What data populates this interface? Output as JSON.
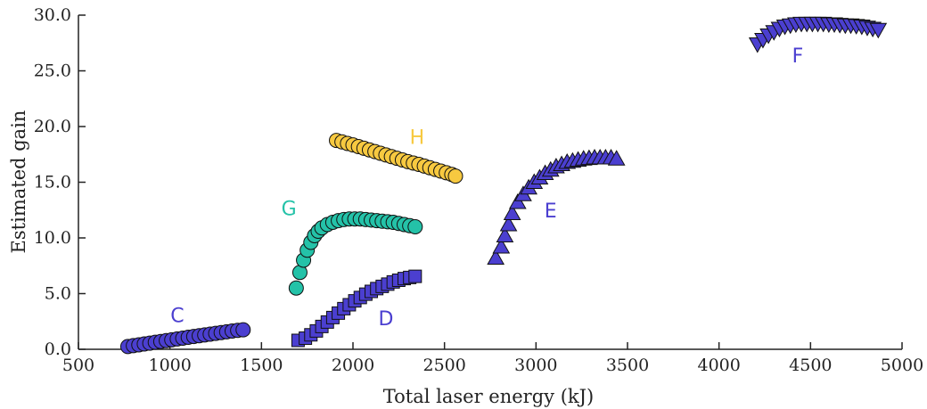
{
  "chart_data": {
    "type": "scatter",
    "xlabel": "Total laser energy (kJ)",
    "ylabel": "Estimated gain",
    "xlim": [
      500,
      5000
    ],
    "ylim": [
      0,
      30
    ],
    "x_ticks": [
      "500",
      "1000",
      "1500",
      "2000",
      "2500",
      "3000",
      "3500",
      "4000",
      "4500",
      "5000"
    ],
    "y_ticks": [
      "0.0",
      "5.0",
      "10.0",
      "15.0",
      "20.0",
      "25.0",
      "30.0"
    ],
    "grid": false,
    "series": [
      {
        "name": "C",
        "marker": "circle",
        "color": "#4b3fd0",
        "label_pos": [
          1040,
          3.1
        ],
        "x": [
          770,
          800,
          830,
          860,
          890,
          920,
          950,
          980,
          1010,
          1040,
          1070,
          1100,
          1130,
          1160,
          1190,
          1220,
          1250,
          1280,
          1310,
          1340,
          1370,
          1400
        ],
        "y": [
          0.25,
          0.33,
          0.4,
          0.48,
          0.55,
          0.63,
          0.7,
          0.78,
          0.85,
          0.93,
          1.0,
          1.08,
          1.15,
          1.22,
          1.29,
          1.36,
          1.43,
          1.5,
          1.57,
          1.64,
          1.7,
          1.75
        ]
      },
      {
        "name": "D",
        "marker": "square",
        "color": "#4b3fd0",
        "label_pos": [
          2180,
          2.8
        ],
        "x": [
          1700,
          1740,
          1770,
          1800,
          1830,
          1860,
          1890,
          1920,
          1950,
          1980,
          2010,
          2040,
          2070,
          2100,
          2130,
          2160,
          2190,
          2220,
          2250,
          2280,
          2310,
          2340
        ],
        "y": [
          0.8,
          1.0,
          1.3,
          1.65,
          2.05,
          2.45,
          2.85,
          3.25,
          3.65,
          4.0,
          4.35,
          4.65,
          4.95,
          5.2,
          5.45,
          5.65,
          5.85,
          6.05,
          6.2,
          6.35,
          6.45,
          6.55
        ]
      },
      {
        "name": "E",
        "marker": "triangle-up",
        "color": "#4b3fd0",
        "label_pos": [
          3080,
          12.5
        ],
        "x": [
          2780,
          2810,
          2830,
          2850,
          2870,
          2900,
          2930,
          2960,
          2990,
          3020,
          3050,
          3080,
          3110,
          3140,
          3170,
          3200,
          3230,
          3260,
          3290,
          3320,
          3350,
          3380,
          3410,
          3440
        ],
        "y": [
          8.2,
          9.2,
          10.2,
          11.2,
          12.2,
          13.2,
          13.9,
          14.5,
          15.0,
          15.4,
          15.8,
          16.1,
          16.4,
          16.6,
          16.8,
          16.9,
          17.0,
          17.1,
          17.15,
          17.2,
          17.2,
          17.2,
          17.2,
          17.1
        ]
      },
      {
        "name": "F",
        "marker": "triangle-down",
        "color": "#4b3fd0",
        "label_pos": [
          4430,
          26.4
        ],
        "x": [
          4210,
          4240,
          4270,
          4300,
          4330,
          4360,
          4390,
          4420,
          4450,
          4480,
          4510,
          4540,
          4570,
          4600,
          4630,
          4660,
          4690,
          4720,
          4750,
          4780,
          4810,
          4840,
          4870
        ],
        "y": [
          27.4,
          27.8,
          28.2,
          28.5,
          28.8,
          29.0,
          29.1,
          29.2,
          29.25,
          29.25,
          29.25,
          29.25,
          29.25,
          29.2,
          29.2,
          29.15,
          29.1,
          29.1,
          29.05,
          29.0,
          28.9,
          28.8,
          28.7
        ]
      },
      {
        "name": "G",
        "marker": "circle",
        "color": "#24c2a8",
        "label_pos": [
          1650,
          12.7
        ],
        "x": [
          1690,
          1710,
          1730,
          1750,
          1770,
          1790,
          1810,
          1830,
          1860,
          1890,
          1920,
          1950,
          1980,
          2010,
          2040,
          2070,
          2100,
          2130,
          2160,
          2190,
          2220,
          2250,
          2280,
          2310,
          2340
        ],
        "y": [
          5.5,
          6.9,
          8.0,
          8.9,
          9.6,
          10.2,
          10.6,
          10.9,
          11.2,
          11.4,
          11.55,
          11.65,
          11.7,
          11.7,
          11.7,
          11.65,
          11.6,
          11.55,
          11.5,
          11.45,
          11.4,
          11.3,
          11.2,
          11.1,
          11.0
        ]
      },
      {
        "name": "H",
        "marker": "circle",
        "color": "#f7c940",
        "label_pos": [
          2350,
          19.1
        ],
        "x": [
          1910,
          1940,
          1970,
          2000,
          2030,
          2060,
          2090,
          2120,
          2150,
          2180,
          2210,
          2240,
          2270,
          2300,
          2330,
          2360,
          2390,
          2420,
          2450,
          2480,
          2510,
          2540,
          2560
        ],
        "y": [
          18.75,
          18.62,
          18.48,
          18.35,
          18.2,
          18.05,
          17.9,
          17.75,
          17.6,
          17.45,
          17.3,
          17.15,
          17.0,
          16.85,
          16.72,
          16.6,
          16.45,
          16.3,
          16.15,
          16.0,
          15.85,
          15.7,
          15.55
        ]
      }
    ]
  }
}
